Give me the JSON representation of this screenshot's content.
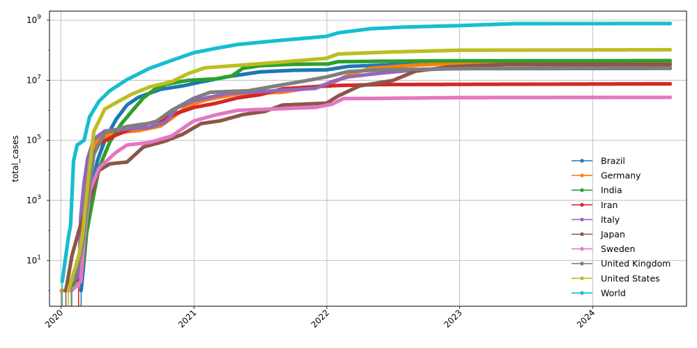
{
  "chart_data": {
    "type": "line",
    "title": "",
    "xlabel": "",
    "ylabel": "total_cases",
    "yscale": "log",
    "ylim": [
      0.3,
      2000000000
    ],
    "xlim": [
      "2019-12-01",
      "2024-09-15"
    ],
    "grid": true,
    "legend_position": "lower right",
    "x_tick_labels": [
      "2020",
      "2021",
      "2022",
      "2023",
      "2024"
    ],
    "y_tick_labels": [
      {
        "value": 10,
        "base": "10",
        "exp": "1"
      },
      {
        "value": 1000,
        "base": "10",
        "exp": "3"
      },
      {
        "value": 100000,
        "base": "10",
        "exp": "5"
      },
      {
        "value": 10000000,
        "base": "10",
        "exp": "7"
      },
      {
        "value": 1000000000,
        "base": "10",
        "exp": "9"
      }
    ],
    "series": [
      {
        "name": "Brazil",
        "color": "#1f77b4",
        "points": [
          [
            "2020-02-26",
            1
          ],
          [
            "2020-03-05",
            10
          ],
          [
            "2020-03-20",
            1000
          ],
          [
            "2020-04-10",
            20000
          ],
          [
            "2020-05-01",
            100000
          ],
          [
            "2020-06-01",
            500000
          ],
          [
            "2020-07-01",
            1500000
          ],
          [
            "2020-08-01",
            2700000
          ],
          [
            "2020-10-01",
            5000000
          ],
          [
            "2020-12-01",
            6500000
          ],
          [
            "2021-01-15",
            8500000
          ],
          [
            "2021-04-01",
            13000000
          ],
          [
            "2021-07-01",
            19000000
          ],
          [
            "2021-10-01",
            21500000
          ],
          [
            "2022-01-01",
            22300000
          ],
          [
            "2022-03-01",
            29000000
          ],
          [
            "2022-07-01",
            33000000
          ],
          [
            "2023-01-01",
            36000000
          ],
          [
            "2024-08-01",
            38000000
          ]
        ]
      },
      {
        "name": "Germany",
        "color": "#ff7f0e",
        "points": [
          [
            "2020-01-03",
            1
          ],
          [
            "2020-01-27",
            1
          ],
          [
            "2020-02-27",
            10
          ],
          [
            "2020-03-07",
            1000
          ],
          [
            "2020-03-20",
            20000
          ],
          [
            "2020-04-10",
            110000
          ],
          [
            "2020-06-01",
            180000
          ],
          [
            "2020-08-01",
            210000
          ],
          [
            "2020-10-01",
            300000
          ],
          [
            "2020-11-01",
            550000
          ],
          [
            "2020-12-15",
            1400000
          ],
          [
            "2021-02-01",
            2200000
          ],
          [
            "2021-05-01",
            3500000
          ],
          [
            "2021-09-01",
            4000000
          ],
          [
            "2021-12-01",
            6000000
          ],
          [
            "2022-01-15",
            8000000
          ],
          [
            "2022-03-01",
            15000000
          ],
          [
            "2022-05-01",
            25000000
          ],
          [
            "2022-09-01",
            32000000
          ],
          [
            "2023-01-01",
            37000000
          ],
          [
            "2024-08-01",
            38500000
          ]
        ]
      },
      {
        "name": "India",
        "color": "#2ca02c",
        "points": [
          [
            "2020-01-30",
            1
          ],
          [
            "2020-02-15",
            3
          ],
          [
            "2020-03-01",
            6
          ],
          [
            "2020-03-10",
            60
          ],
          [
            "2020-03-25",
            600
          ],
          [
            "2020-04-15",
            12000
          ],
          [
            "2020-05-15",
            90000
          ],
          [
            "2020-06-15",
            350000
          ],
          [
            "2020-07-15",
            950000
          ],
          [
            "2020-08-15",
            2600000
          ],
          [
            "2020-09-15",
            5000000
          ],
          [
            "2020-10-15",
            7300000
          ],
          [
            "2020-12-15",
            9900000
          ],
          [
            "2021-03-01",
            11100000
          ],
          [
            "2021-04-15",
            14000000
          ],
          [
            "2021-05-15",
            25000000
          ],
          [
            "2021-07-01",
            30500000
          ],
          [
            "2021-10-01",
            34000000
          ],
          [
            "2022-01-05",
            35000000
          ],
          [
            "2022-02-01",
            41500000
          ],
          [
            "2022-06-01",
            43000000
          ],
          [
            "2023-01-01",
            44600000
          ],
          [
            "2024-08-01",
            45000000
          ]
        ]
      },
      {
        "name": "Iran",
        "color": "#d62728",
        "points": [
          [
            "2020-02-19",
            2
          ],
          [
            "2020-02-26",
            100
          ],
          [
            "2020-03-05",
            3500
          ],
          [
            "2020-03-20",
            20000
          ],
          [
            "2020-04-15",
            75000
          ],
          [
            "2020-06-01",
            150000
          ],
          [
            "2020-08-01",
            300000
          ],
          [
            "2020-10-01",
            460000
          ],
          [
            "2020-11-15",
            800000
          ],
          [
            "2021-01-01",
            1250000
          ],
          [
            "2021-03-01",
            1700000
          ],
          [
            "2021-05-01",
            2600000
          ],
          [
            "2021-07-01",
            3300000
          ],
          [
            "2021-09-01",
            5200000
          ],
          [
            "2021-12-01",
            6150000
          ],
          [
            "2022-02-01",
            6700000
          ],
          [
            "2022-06-01",
            7200000
          ],
          [
            "2024-08-01",
            7600000
          ]
        ]
      },
      {
        "name": "Italy",
        "color": "#9467bd",
        "points": [
          [
            "2020-01-31",
            2
          ],
          [
            "2020-02-20",
            3
          ],
          [
            "2020-02-25",
            300
          ],
          [
            "2020-03-05",
            3800
          ],
          [
            "2020-03-15",
            25000
          ],
          [
            "2020-04-01",
            110000
          ],
          [
            "2020-05-01",
            205000
          ],
          [
            "2020-07-01",
            240000
          ],
          [
            "2020-09-01",
            270000
          ],
          [
            "2020-10-15",
            400000
          ],
          [
            "2020-11-15",
            1200000
          ],
          [
            "2021-01-01",
            2100000
          ],
          [
            "2021-04-01",
            3600000
          ],
          [
            "2021-08-01",
            4400000
          ],
          [
            "2021-12-01",
            5400000
          ],
          [
            "2022-01-15",
            9000000
          ],
          [
            "2022-03-01",
            13000000
          ],
          [
            "2022-06-01",
            17500000
          ],
          [
            "2022-09-01",
            22000000
          ],
          [
            "2023-01-01",
            25000000
          ],
          [
            "2024-08-01",
            26500000
          ]
        ]
      },
      {
        "name": "Japan",
        "color": "#8c564b",
        "points": [
          [
            "2020-01-15",
            1
          ],
          [
            "2020-02-01",
            15
          ],
          [
            "2020-02-20",
            100
          ],
          [
            "2020-03-01",
            250
          ],
          [
            "2020-03-20",
            1000
          ],
          [
            "2020-04-15",
            10000
          ],
          [
            "2020-05-15",
            16500
          ],
          [
            "2020-07-01",
            19000
          ],
          [
            "2020-08-15",
            60000
          ],
          [
            "2020-10-15",
            95000
          ],
          [
            "2020-12-01",
            160000
          ],
          [
            "2021-01-20",
            360000
          ],
          [
            "2021-03-15",
            450000
          ],
          [
            "2021-05-15",
            720000
          ],
          [
            "2021-07-15",
            920000
          ],
          [
            "2021-09-01",
            1500000
          ],
          [
            "2021-12-31",
            1730000
          ],
          [
            "2022-02-01",
            3000000
          ],
          [
            "2022-04-01",
            6500000
          ],
          [
            "2022-07-01",
            9800000
          ],
          [
            "2022-09-01",
            20000000
          ],
          [
            "2022-12-01",
            28000000
          ],
          [
            "2023-05-08",
            33800000
          ],
          [
            "2024-08-01",
            33800000
          ]
        ]
      },
      {
        "name": "Sweden",
        "color": "#e377c2",
        "points": [
          [
            "2020-01-31",
            1
          ],
          [
            "2020-02-25",
            2
          ],
          [
            "2020-03-05",
            50
          ],
          [
            "2020-03-20",
            2000
          ],
          [
            "2020-04-15",
            12000
          ],
          [
            "2020-06-01",
            40000
          ],
          [
            "2020-07-01",
            70000
          ],
          [
            "2020-09-01",
            85000
          ],
          [
            "2020-11-01",
            140000
          ],
          [
            "2020-12-31",
            440000
          ],
          [
            "2021-03-01",
            700000
          ],
          [
            "2021-05-01",
            1000000
          ],
          [
            "2021-08-01",
            1100000
          ],
          [
            "2021-12-01",
            1250000
          ],
          [
            "2022-01-15",
            1600000
          ],
          [
            "2022-02-15",
            2450000
          ],
          [
            "2022-06-01",
            2500000
          ],
          [
            "2023-01-01",
            2650000
          ],
          [
            "2024-08-01",
            2700000
          ]
        ]
      },
      {
        "name": "United Kingdom",
        "color": "#7f7f7f",
        "points": [
          [
            "2020-01-31",
            2
          ],
          [
            "2020-02-20",
            9
          ],
          [
            "2020-03-01",
            40
          ],
          [
            "2020-03-15",
            1200
          ],
          [
            "2020-04-01",
            35000
          ],
          [
            "2020-05-01",
            180000
          ],
          [
            "2020-07-01",
            290000
          ],
          [
            "2020-09-15",
            390000
          ],
          [
            "2020-11-01",
            1000000
          ],
          [
            "2020-12-31",
            2500000
          ],
          [
            "2021-02-15",
            4000000
          ],
          [
            "2021-06-01",
            4500000
          ],
          [
            "2021-08-01",
            6100000
          ],
          [
            "2021-10-15",
            8700000
          ],
          [
            "2022-01-01",
            13000000
          ],
          [
            "2022-03-01",
            19500000
          ],
          [
            "2022-06-01",
            22500000
          ],
          [
            "2023-01-01",
            24300000
          ],
          [
            "2024-08-01",
            24900000
          ]
        ]
      },
      {
        "name": "United States",
        "color": "#bcbd22",
        "points": [
          [
            "2020-01-22",
            1
          ],
          [
            "2020-02-20",
            15
          ],
          [
            "2020-03-01",
            75
          ],
          [
            "2020-03-15",
            3500
          ],
          [
            "2020-04-01",
            200000
          ],
          [
            "2020-05-01",
            1100000
          ],
          [
            "2020-06-01",
            1800000
          ],
          [
            "2020-07-15",
            3500000
          ],
          [
            "2020-09-01",
            6000000
          ],
          [
            "2020-11-01",
            9000000
          ],
          [
            "2020-12-15",
            16500000
          ],
          [
            "2021-01-31",
            26000000
          ],
          [
            "2021-06-01",
            33300000
          ],
          [
            "2021-09-15",
            42000000
          ],
          [
            "2021-12-31",
            54000000
          ],
          [
            "2022-02-01",
            75000000
          ],
          [
            "2022-07-01",
            88000000
          ],
          [
            "2023-01-01",
            100000000
          ],
          [
            "2024-08-01",
            103400000
          ]
        ]
      },
      {
        "name": "World",
        "color": "#17becf",
        "points": [
          [
            "2020-01-05",
            2
          ],
          [
            "2020-01-22",
            60
          ],
          [
            "2020-01-28",
            150
          ],
          [
            "2020-02-05",
            20000
          ],
          [
            "2020-02-15",
            70000
          ],
          [
            "2020-03-05",
            100000
          ],
          [
            "2020-03-20",
            600000
          ],
          [
            "2020-04-15",
            2000000
          ],
          [
            "2020-05-15",
            4500000
          ],
          [
            "2020-07-01",
            10500000
          ],
          [
            "2020-09-01",
            25000000
          ],
          [
            "2020-11-01",
            46000000
          ],
          [
            "2021-01-01",
            83000000
          ],
          [
            "2021-03-01",
            115000000
          ],
          [
            "2021-05-01",
            155000000
          ],
          [
            "2021-08-01",
            200000000
          ],
          [
            "2021-12-31",
            290000000
          ],
          [
            "2022-02-01",
            380000000
          ],
          [
            "2022-05-01",
            520000000
          ],
          [
            "2022-08-01",
            590000000
          ],
          [
            "2022-12-31",
            660000000
          ],
          [
            "2023-06-01",
            765000000
          ],
          [
            "2024-08-01",
            776000000
          ]
        ]
      }
    ]
  }
}
